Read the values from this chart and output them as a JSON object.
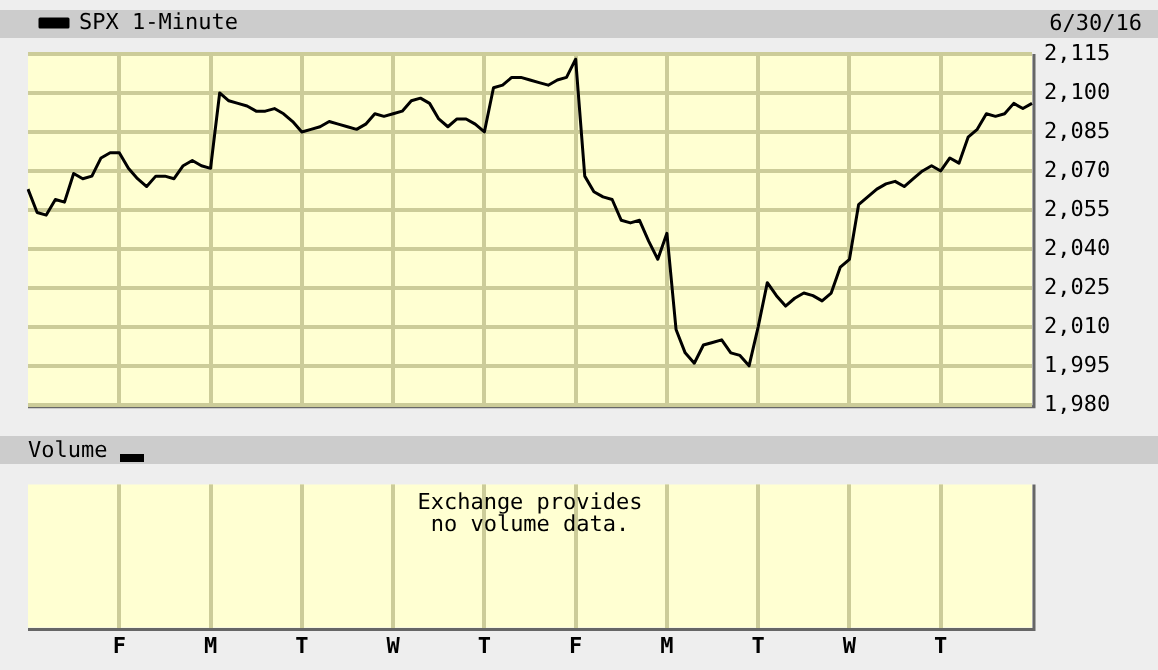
{
  "chart_data": [
    {
      "type": "line",
      "annotations": [
        "6/30/16"
      ],
      "legend": "top left",
      "grid": true,
      "tick_labels": "y",
      "categories": [
        null,
        null,
        null,
        null,
        null,
        null,
        null,
        null,
        null,
        null,
        null,
        null,
        null,
        null,
        null,
        null,
        null,
        null,
        null,
        null,
        null,
        null,
        null,
        null,
        null,
        null,
        null,
        null,
        null,
        null,
        null,
        null,
        null,
        null,
        null,
        null,
        null,
        null,
        null,
        null,
        null,
        null,
        null,
        null,
        null,
        null,
        null,
        null,
        null,
        null,
        null,
        null,
        null,
        null,
        null,
        null,
        null,
        null,
        null,
        null,
        null,
        null,
        null,
        null,
        null,
        null,
        null,
        null,
        null,
        null,
        null,
        null,
        null,
        null,
        null,
        null,
        null,
        null,
        null,
        null,
        null,
        null,
        null,
        null,
        null,
        null,
        null,
        null,
        null,
        null,
        null,
        null,
        null,
        null,
        null,
        null,
        null,
        null,
        null,
        null,
        null,
        null,
        null,
        null,
        null,
        null,
        null,
        null,
        null,
        null,
        null
      ],
      "ylim": [
        1980,
        2115
      ],
      "yticks": [
        {
          "value": 1980,
          "label": "1,980"
        },
        {
          "value": 1995,
          "label": "1,995"
        },
        {
          "value": 2010,
          "label": "2,010"
        },
        {
          "value": 2025,
          "label": "2,025"
        },
        {
          "value": 2040,
          "label": "2,040"
        },
        {
          "value": 2055,
          "label": "2,055"
        },
        {
          "value": 2070,
          "label": "2,070"
        },
        {
          "value": 2085,
          "label": "2,085"
        },
        {
          "value": 2100,
          "label": "2,100"
        },
        {
          "value": 2115,
          "label": "2,115"
        }
      ],
      "series": [
        {
          "name": "SPX 1-Minute",
          "color": "#000000",
          "values": [
            2063,
            2054,
            2053,
            2059,
            2058,
            2069,
            2067,
            2068,
            2075,
            2077,
            2077,
            2071,
            2067,
            2064,
            2068,
            2068,
            2067,
            2072,
            2074,
            2072,
            2071,
            2100,
            2097,
            2096,
            2095,
            2093,
            2093,
            2094,
            2092,
            2089,
            2085,
            2086,
            2087,
            2089,
            2088,
            2087,
            2086,
            2088,
            2092,
            2091,
            2092,
            2093,
            2097,
            2098,
            2096,
            2090,
            2087,
            2090,
            2090,
            2088,
            2085,
            2102,
            2103,
            2106,
            2106,
            2105,
            2104,
            2103,
            2105,
            2106,
            2113,
            2068,
            2062,
            2060,
            2059,
            2051,
            2050,
            2051,
            2043,
            2036,
            2046,
            2009,
            2000,
            1996,
            2003,
            2004,
            2005,
            2000,
            1999,
            1995,
            2010,
            2027,
            2022,
            2018,
            2021,
            2023,
            2022,
            2020,
            2023,
            2033,
            2036,
            2057,
            2060,
            2063,
            2065,
            2066,
            2064,
            2067,
            2070,
            2072,
            2070,
            2075,
            2073,
            2083,
            2086,
            2092,
            2091,
            2092,
            2096,
            2094,
            2096
          ]
        }
      ]
    },
    {
      "type": "other",
      "title": "Volume",
      "annotations": [
        "Exchange provides\nno volume data."
      ],
      "categories": [
        null,
        null,
        null,
        null,
        null,
        null,
        null,
        null,
        null,
        null,
        "F",
        null,
        null,
        null,
        null,
        null,
        null,
        null,
        null,
        null,
        "M",
        null,
        null,
        null,
        null,
        null,
        null,
        null,
        null,
        null,
        "T",
        null,
        null,
        null,
        null,
        null,
        null,
        null,
        null,
        null,
        "W",
        null,
        null,
        null,
        null,
        null,
        null,
        null,
        null,
        null,
        "T",
        null,
        null,
        null,
        null,
        null,
        null,
        null,
        null,
        null,
        "F",
        null,
        null,
        null,
        null,
        null,
        null,
        null,
        null,
        null,
        "M",
        null,
        null,
        null,
        null,
        null,
        null,
        null,
        null,
        null,
        "T",
        null,
        null,
        null,
        null,
        null,
        null,
        null,
        null,
        null,
        "W",
        null,
        null,
        null,
        null,
        null,
        null,
        null,
        null,
        null,
        "T",
        null,
        null,
        null,
        null,
        null,
        null,
        null,
        null,
        null,
        null
      ]
    }
  ]
}
